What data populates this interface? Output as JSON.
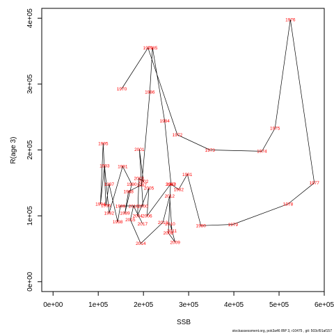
{
  "chart_data": {
    "type": "line",
    "xlabel": "SSB",
    "ylabel": "R(age 3)",
    "xlim": [
      -25000,
      600000
    ],
    "ylim": [
      -15000,
      415000
    ],
    "xticks": [
      {
        "value": 0,
        "label": "0e+00"
      },
      {
        "value": 100000,
        "label": "1e+05"
      },
      {
        "value": 200000,
        "label": "2e+05"
      },
      {
        "value": 300000,
        "label": "3e+05"
      },
      {
        "value": 400000,
        "label": "4e+05"
      },
      {
        "value": 500000,
        "label": "5e+05"
      },
      {
        "value": 600000,
        "label": "6e+05"
      }
    ],
    "yticks": [
      {
        "value": 0,
        "label": "0e+00"
      },
      {
        "value": 100000,
        "label": "1e+05"
      },
      {
        "value": 200000,
        "label": "2e+05"
      },
      {
        "value": 300000,
        "label": "3e+05"
      },
      {
        "value": 400000,
        "label": "4e+05"
      }
    ],
    "grid": false,
    "label_color": "#ff0000",
    "line_color": "#000000",
    "points": [
      {
        "year": "1970",
        "x": 152000,
        "y": 293000
      },
      {
        "year": "1971",
        "x": 210000,
        "y": 355000
      },
      {
        "year": "1972",
        "x": 275000,
        "y": 223000
      },
      {
        "year": "1973",
        "x": 347000,
        "y": 200000
      },
      {
        "year": "1974",
        "x": 462000,
        "y": 198000
      },
      {
        "year": "1975",
        "x": 491000,
        "y": 233000
      },
      {
        "year": "1976",
        "x": 525000,
        "y": 398000
      },
      {
        "year": "1977",
        "x": 578000,
        "y": 150000
      },
      {
        "year": "1978",
        "x": 520000,
        "y": 118000
      },
      {
        "year": "1979",
        "x": 398000,
        "y": 87000
      },
      {
        "year": "1980",
        "x": 327000,
        "y": 85000
      },
      {
        "year": "1981",
        "x": 297000,
        "y": 163000
      },
      {
        "year": "1982",
        "x": 278000,
        "y": 140000
      },
      {
        "year": "1983",
        "x": 261000,
        "y": 148000
      },
      {
        "year": "1984",
        "x": 247000,
        "y": 244000
      },
      {
        "year": "1985",
        "x": 220000,
        "y": 355000
      },
      {
        "year": "1986",
        "x": 214000,
        "y": 288000
      },
      {
        "year": "1987",
        "x": 196000,
        "y": 147000
      },
      {
        "year": "1988",
        "x": 167000,
        "y": 137000
      },
      {
        "year": "1989",
        "x": 159000,
        "y": 104000
      },
      {
        "year": "1990",
        "x": 174000,
        "y": 148000
      },
      {
        "year": "1991",
        "x": 154000,
        "y": 175000
      },
      {
        "year": "1992",
        "x": 124000,
        "y": 104000
      },
      {
        "year": "1993",
        "x": 114000,
        "y": 176000
      },
      {
        "year": "1994",
        "x": 105000,
        "y": 118000
      },
      {
        "year": "1995",
        "x": 111000,
        "y": 210000
      },
      {
        "year": "1996",
        "x": 117000,
        "y": 116000
      },
      {
        "year": "1997",
        "x": 124000,
        "y": 148000
      },
      {
        "year": "1998",
        "x": 143000,
        "y": 91000
      },
      {
        "year": "1999",
        "x": 149000,
        "y": 115000
      },
      {
        "year": "2000",
        "x": 199000,
        "y": 115000
      },
      {
        "year": "2001",
        "x": 191000,
        "y": 201000
      },
      {
        "year": "2002",
        "x": 200000,
        "y": 152000
      },
      {
        "year": "2003",
        "x": 190000,
        "y": 157000
      },
      {
        "year": "2004",
        "x": 187000,
        "y": 100000
      },
      {
        "year": "2005",
        "x": 212000,
        "y": 142000
      },
      {
        "year": "2006",
        "x": 208000,
        "y": 100000
      },
      {
        "year": "2007",
        "x": 260000,
        "y": 148000
      },
      {
        "year": "2008",
        "x": 255000,
        "y": 74000
      },
      {
        "year": "2009",
        "x": 270000,
        "y": 60000
      },
      {
        "year": "2010",
        "x": 259000,
        "y": 88000
      },
      {
        "year": "2011",
        "x": 263000,
        "y": 77000
      },
      {
        "year": "2012",
        "x": 258000,
        "y": 130000
      },
      {
        "year": "2013",
        "x": 243000,
        "y": 90000
      },
      {
        "year": "2014",
        "x": 194000,
        "y": 58000
      },
      {
        "year": "2015",
        "x": 171000,
        "y": 94000
      },
      {
        "year": "2016",
        "x": 178000,
        "y": 115000
      },
      {
        "year": "2017",
        "x": 198000,
        "y": 88000
      }
    ]
  },
  "footer": "stockassessment.org, pok3a46 IBP 3, r10475 , git: 503cf91af157"
}
